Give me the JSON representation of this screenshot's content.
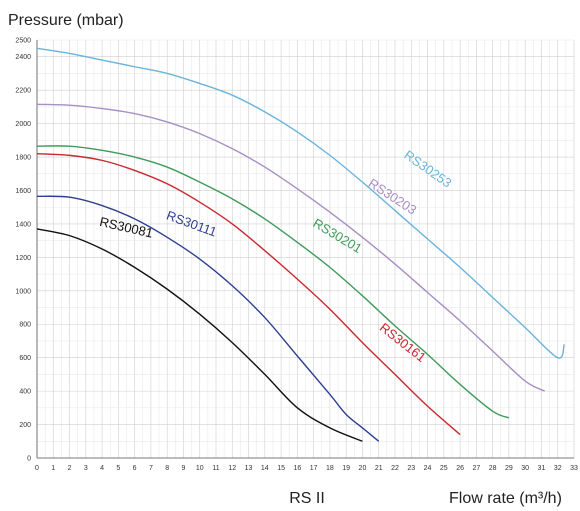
{
  "chart_data": {
    "type": "line",
    "ylabel": "Pressure (mbar)",
    "xlabel": "Flow rate (m³/h)",
    "center_label": "RS II",
    "xlim": [
      0,
      33
    ],
    "ylim": [
      0,
      2500
    ],
    "x_ticks": [
      0,
      1,
      2,
      3,
      4,
      5,
      6,
      7,
      8,
      9,
      10,
      11,
      12,
      13,
      14,
      15,
      16,
      17,
      18,
      19,
      20,
      21,
      22,
      23,
      24,
      25,
      26,
      27,
      28,
      29,
      30,
      31,
      32,
      33
    ],
    "x_tick_labels": [
      "0",
      "1",
      "2",
      "3",
      "4",
      "5",
      "6",
      "7",
      "8",
      "9",
      "10",
      "11",
      "12",
      "13",
      "14",
      "15",
      "16",
      "17",
      "18",
      "19",
      "20",
      "21",
      "22",
      "23",
      "24",
      "25",
      "26",
      "27",
      "28",
      "29",
      "30",
      "31",
      "32",
      "33"
    ],
    "y_ticks": [
      0,
      200,
      400,
      600,
      800,
      1000,
      1200,
      1400,
      1600,
      1800,
      2000,
      2200,
      2400,
      2500
    ],
    "y_tick_labels": [
      "0",
      "200",
      "400",
      "600",
      "800",
      "1000",
      "1200",
      "1400",
      "1600",
      "1800",
      "2000",
      "2200",
      "2400",
      "2500"
    ],
    "grid": true,
    "series": [
      {
        "name": "RS30081",
        "color": "#111111",
        "x": [
          0,
          2,
          4,
          6,
          8,
          10,
          12,
          14,
          16,
          18,
          20
        ],
        "y": [
          1370,
          1330,
          1250,
          1140,
          1010,
          860,
          690,
          500,
          300,
          180,
          100
        ]
      },
      {
        "name": "RS30111",
        "color": "#2e3f91",
        "x": [
          0,
          2,
          4,
          6,
          8,
          10,
          12,
          14,
          16,
          18,
          19,
          20,
          21
        ],
        "y": [
          1565,
          1560,
          1510,
          1430,
          1320,
          1190,
          1030,
          840,
          610,
          380,
          260,
          180,
          100
        ]
      },
      {
        "name": "RS30161",
        "color": "#c8282e",
        "x": [
          0,
          2,
          4,
          6,
          8,
          10,
          12,
          14,
          16,
          18,
          20,
          22,
          24,
          26
        ],
        "y": [
          1820,
          1810,
          1780,
          1720,
          1640,
          1530,
          1400,
          1240,
          1070,
          890,
          690,
          500,
          310,
          140
        ]
      },
      {
        "name": "RS30201",
        "color": "#3f9a5a",
        "x": [
          0,
          2,
          4,
          6,
          8,
          10,
          12,
          14,
          16,
          18,
          20,
          22,
          24,
          26,
          28,
          29
        ],
        "y": [
          1865,
          1865,
          1840,
          1800,
          1740,
          1650,
          1550,
          1430,
          1290,
          1140,
          970,
          790,
          620,
          440,
          280,
          240
        ]
      },
      {
        "name": "RS30203",
        "color": "#a78ec4",
        "x": [
          0,
          2,
          4,
          6,
          8,
          10,
          12,
          14,
          16,
          18,
          20,
          22,
          24,
          26,
          28,
          30,
          31.2
        ],
        "y": [
          2115,
          2110,
          2090,
          2060,
          2010,
          1940,
          1850,
          1740,
          1610,
          1470,
          1320,
          1160,
          990,
          820,
          640,
          460,
          400
        ]
      },
      {
        "name": "RS30253",
        "color": "#69b4dc",
        "x": [
          0,
          2,
          4,
          6,
          8,
          10,
          12,
          14,
          16,
          18,
          20,
          22,
          24,
          26,
          28,
          30,
          32,
          32.4
        ],
        "y": [
          2450,
          2420,
          2380,
          2340,
          2300,
          2240,
          2170,
          2070,
          1950,
          1810,
          1650,
          1480,
          1310,
          1140,
          960,
          780,
          600,
          680
        ]
      }
    ],
    "annotations": [
      {
        "text": "RS30081",
        "series": 0,
        "x": 3.8,
        "y": 1390,
        "angle": 13
      },
      {
        "text": "RS30111",
        "series": 1,
        "x": 7.9,
        "y": 1430,
        "angle": 20
      },
      {
        "text": "RS30161",
        "series": 2,
        "x": 21.0,
        "y": 770,
        "angle": 38
      },
      {
        "text": "RS30201",
        "series": 3,
        "x": 16.9,
        "y": 1390,
        "angle": 31
      },
      {
        "text": "RS30203",
        "series": 4,
        "x": 20.3,
        "y": 1630,
        "angle": 33
      },
      {
        "text": "RS30253",
        "series": 5,
        "x": 22.5,
        "y": 1800,
        "angle": 35
      }
    ]
  }
}
